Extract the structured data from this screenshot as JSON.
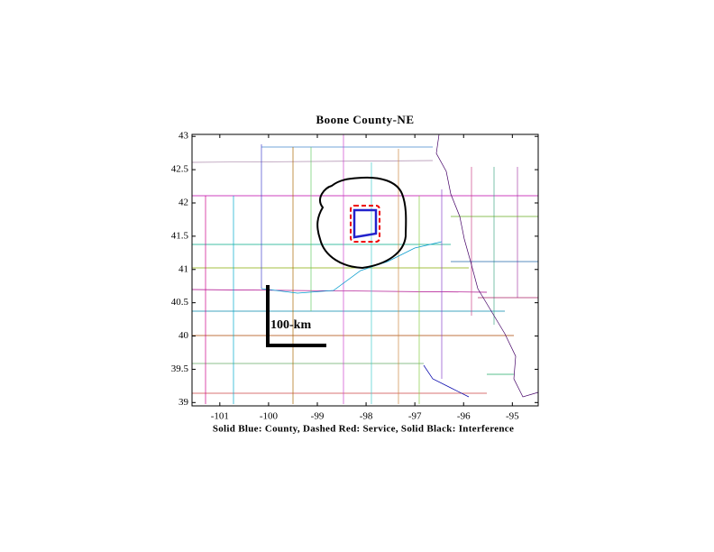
{
  "chart_data": {
    "type": "map",
    "title": "Boone County-NE",
    "x_label": "Solid Blue: County, Dashed Red: Service, Solid Black: Interference",
    "scale_label": "100-km",
    "xlim": [
      -101.57,
      -94.47
    ],
    "ylim": [
      38.95,
      43.03
    ],
    "xticks": [
      -101,
      -100,
      -99,
      -98,
      -97,
      -96,
      -95
    ],
    "yticks": [
      39,
      39.5,
      40,
      40.5,
      41,
      41.5,
      42,
      42.5,
      43
    ]
  }
}
